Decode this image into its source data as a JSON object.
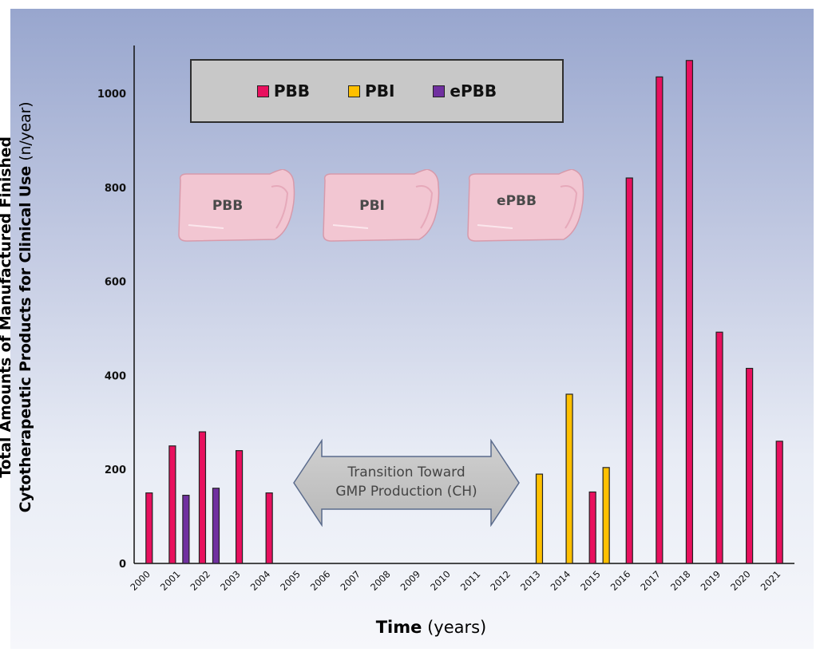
{
  "chart_data": {
    "type": "bar",
    "categories": [
      "2000",
      "2001",
      "2002",
      "2003",
      "2004",
      "2005",
      "2006",
      "2007",
      "2008",
      "2009",
      "2010",
      "2011",
      "2012",
      "2013",
      "2014",
      "2015",
      "2016",
      "2017",
      "2018",
      "2019",
      "2020",
      "2021"
    ],
    "series": [
      {
        "name": "PBB",
        "color": "#e8105e",
        "values": [
          150,
          250,
          280,
          240,
          150,
          0,
          0,
          0,
          0,
          0,
          0,
          0,
          0,
          0,
          0,
          152,
          820,
          1035,
          1070,
          492,
          415,
          260
        ]
      },
      {
        "name": "PBI",
        "color": "#ffc000",
        "values": [
          0,
          0,
          0,
          0,
          0,
          0,
          0,
          0,
          0,
          0,
          0,
          0,
          0,
          190,
          360,
          204,
          0,
          0,
          0,
          0,
          0,
          0
        ]
      },
      {
        "name": "ePBB",
        "color": "#7030a0",
        "values": [
          0,
          145,
          160,
          0,
          0,
          0,
          0,
          0,
          0,
          0,
          0,
          0,
          0,
          0,
          0,
          0,
          0,
          0,
          0,
          0,
          0,
          0
        ]
      }
    ],
    "ylim": [
      0,
      1100
    ],
    "yticks": [
      0,
      200,
      400,
      600,
      800,
      1000
    ],
    "ylabel_bold_line1": "Total Amounts of Manufactured Finished",
    "ylabel_bold_line2": "Cytotherapeutic Products for Clinical Use",
    "ylabel_unit": "(n/year)",
    "xlabel_bold": "Time",
    "xlabel_unit": "(years)",
    "legend_placement": "top-left",
    "grid": false
  },
  "legend": {
    "items": [
      {
        "label": "PBB",
        "color": "#e8105e"
      },
      {
        "label": "PBI",
        "color": "#ffc000"
      },
      {
        "label": "ePBB",
        "color": "#7030a0"
      }
    ]
  },
  "patches": [
    {
      "label": "PBB"
    },
    {
      "label": "PBI"
    },
    {
      "label": "ePBB"
    }
  ],
  "annotation": {
    "line1": "Transition Toward",
    "line2": "GMP Production (CH)"
  }
}
